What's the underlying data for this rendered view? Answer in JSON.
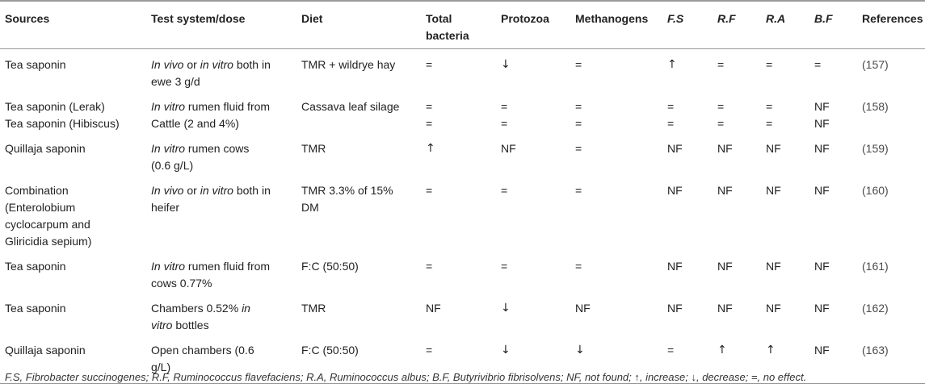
{
  "headers": [
    "Sources",
    "Test system/dose",
    "Diet",
    "Total bacteria",
    "Protozoa",
    "Methanogens",
    "F.S",
    "R.F",
    "R.A",
    "B.F",
    "References"
  ],
  "rows": [
    {
      "source": [
        "Tea saponin"
      ],
      "test": [
        [
          {
            "t": "In vivo",
            "i": true
          },
          {
            "t": " or ",
            "i": false
          },
          {
            "t": "in vitro",
            "i": true
          },
          {
            "t": " both in",
            "i": false
          }
        ],
        [
          {
            "t": "ewe 3 g/d",
            "i": false
          }
        ]
      ],
      "diet": [
        "TMR + wildrye hay"
      ],
      "bacteria": [
        "="
      ],
      "protozoa": [
        "↓"
      ],
      "methanogens": [
        "="
      ],
      "fs": [
        "↑"
      ],
      "rf": [
        "="
      ],
      "ra": [
        "="
      ],
      "bf": [
        "="
      ],
      "ref": "(157)"
    },
    {
      "source": [
        "Tea saponin (Lerak)",
        "Tea saponin (Hibiscus)"
      ],
      "test": [
        [
          {
            "t": "In vitro",
            "i": true
          },
          {
            "t": " rumen fluid from",
            "i": false
          }
        ],
        [
          {
            "t": "Cattle (2 and 4%)",
            "i": false
          }
        ]
      ],
      "diet": [
        "Cassava leaf silage"
      ],
      "bacteria": [
        "=",
        "="
      ],
      "protozoa": [
        "=",
        "="
      ],
      "methanogens": [
        "=",
        "="
      ],
      "fs": [
        "=",
        "="
      ],
      "rf": [
        "=",
        "="
      ],
      "ra": [
        "=",
        "="
      ],
      "bf": [
        "NF",
        "NF"
      ],
      "ref": "(158)"
    },
    {
      "source": [
        "Quillaja saponin"
      ],
      "test": [
        [
          {
            "t": "In vitro",
            "i": true
          },
          {
            "t": " rumen cows",
            "i": false
          }
        ],
        [
          {
            "t": "(0.6 g/L)",
            "i": false
          }
        ]
      ],
      "diet": [
        "TMR"
      ],
      "bacteria": [
        "↑"
      ],
      "protozoa": [
        "NF"
      ],
      "methanogens": [
        "="
      ],
      "fs": [
        "NF"
      ],
      "rf": [
        "NF"
      ],
      "ra": [
        "NF"
      ],
      "bf": [
        "NF"
      ],
      "ref": "(159)"
    },
    {
      "source": [
        "Combination",
        "(Enterolobium",
        "cyclocarpum and",
        "Gliricidia sepium)"
      ],
      "test": [
        [
          {
            "t": "In vivo",
            "i": true
          },
          {
            "t": " or ",
            "i": false
          },
          {
            "t": "in vitro",
            "i": true
          },
          {
            "t": " both in",
            "i": false
          }
        ],
        [
          {
            "t": "heifer",
            "i": false
          }
        ]
      ],
      "diet": [
        "TMR 3.3% of 15%",
        "DM"
      ],
      "bacteria": [
        "="
      ],
      "protozoa": [
        "="
      ],
      "methanogens": [
        "="
      ],
      "fs": [
        "NF"
      ],
      "rf": [
        "NF"
      ],
      "ra": [
        "NF"
      ],
      "bf": [
        "NF"
      ],
      "ref": "(160)"
    },
    {
      "source": [
        "Tea saponin"
      ],
      "test": [
        [
          {
            "t": "In vitro",
            "i": true
          },
          {
            "t": " rumen fluid from",
            "i": false
          }
        ],
        [
          {
            "t": "cows 0.77%",
            "i": false
          }
        ]
      ],
      "diet": [
        "F:C (50:50)"
      ],
      "bacteria": [
        "="
      ],
      "protozoa": [
        "="
      ],
      "methanogens": [
        "="
      ],
      "fs": [
        "NF"
      ],
      "rf": [
        "NF"
      ],
      "ra": [
        "NF"
      ],
      "bf": [
        "NF"
      ],
      "ref": "(161)"
    },
    {
      "source": [
        "Tea saponin"
      ],
      "test": [
        [
          {
            "t": "Chambers 0.52% ",
            "i": false
          },
          {
            "t": "in",
            "i": true
          }
        ],
        [
          {
            "t": "vitro",
            "i": true
          },
          {
            "t": " bottles",
            "i": false
          }
        ]
      ],
      "diet": [
        "TMR"
      ],
      "bacteria": [
        "NF"
      ],
      "protozoa": [
        "↓"
      ],
      "methanogens": [
        "NF"
      ],
      "fs": [
        "NF"
      ],
      "rf": [
        "NF"
      ],
      "ra": [
        "NF"
      ],
      "bf": [
        "NF"
      ],
      "ref": "(162)"
    },
    {
      "source": [
        "Quillaja saponin"
      ],
      "test": [
        [
          {
            "t": "Open chambers (0.6",
            "i": false
          }
        ],
        [
          {
            "t": "g/L)",
            "i": false
          }
        ]
      ],
      "diet": [
        "F:C (50:50)"
      ],
      "bacteria": [
        "="
      ],
      "protozoa": [
        "↓"
      ],
      "methanogens": [
        "↓"
      ],
      "fs": [
        "="
      ],
      "rf": [
        "↑"
      ],
      "ra": [
        "↑"
      ],
      "bf": [
        "NF"
      ],
      "ref": "(163)"
    }
  ],
  "footnote": "F.S, Fibrobacter succinogenes; R.F, Ruminococcus flavefaciens; R.A, Ruminococcus albus; B.F, Butyrivibrio fibrisolvens; NF, not found; ↑, increase; ↓, decrease; =, no effect."
}
